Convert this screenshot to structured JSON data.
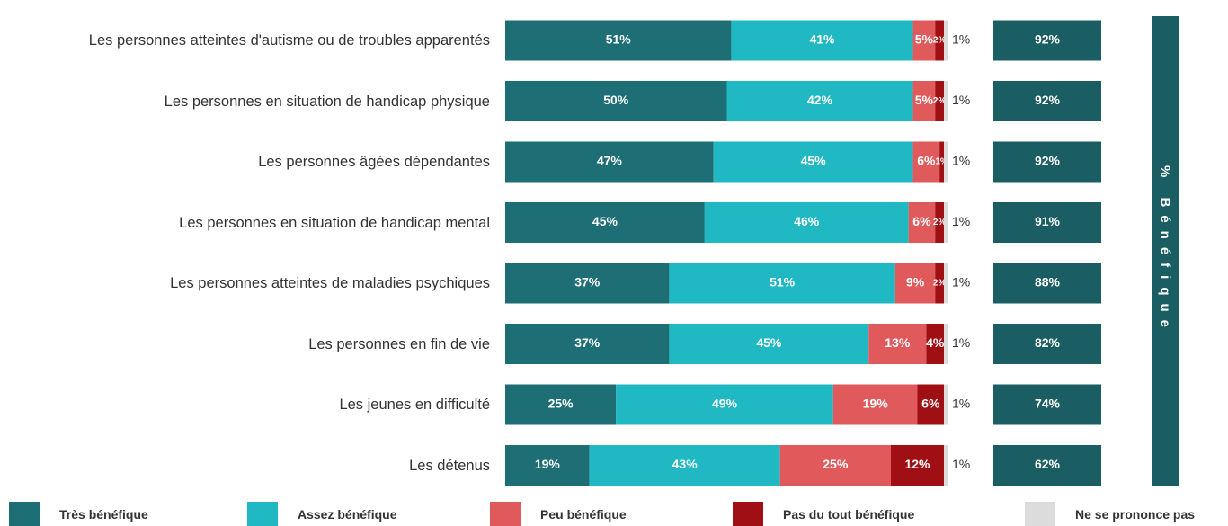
{
  "chart_data": {
    "type": "stacked-bar",
    "categories": [
      "Les personnes atteintes d'autisme ou de troubles apparentés",
      "Les personnes en situation de handicap physique",
      "Les personnes âgées dépendantes",
      "Les personnes en situation de handicap mental",
      "Les personnes atteintes de maladies psychiques",
      "Les personnes en fin de vie",
      "Les jeunes en difficulté",
      "Les détenus"
    ],
    "series": [
      {
        "name": "Très bénéfique",
        "color": "#1d6e75",
        "values": [
          51,
          50,
          47,
          45,
          37,
          37,
          25,
          19
        ],
        "value_labels": [
          "51%",
          "50%",
          "47%",
          "45%",
          "37%",
          "37%",
          "25%",
          "19%"
        ]
      },
      {
        "name": "Assez bénéfique",
        "color": "#1fb8c3",
        "values": [
          41,
          42,
          45,
          46,
          51,
          45,
          49,
          43
        ],
        "value_labels": [
          "41%",
          "42%",
          "45%",
          "46%",
          "51%",
          "45%",
          "49%",
          "43%"
        ]
      },
      {
        "name": "Peu bénéfique",
        "color": "#e05a5c",
        "values": [
          5,
          5,
          6,
          6,
          9,
          13,
          19,
          25
        ],
        "value_labels": [
          "5%",
          "5%",
          "6%",
          "6%",
          "9%",
          "13%",
          "19%",
          "25%"
        ]
      },
      {
        "name": "Pas du tout bénéfique",
        "color": "#a00f14",
        "values": [
          2,
          2,
          1,
          2,
          2,
          4,
          6,
          12
        ],
        "value_labels": [
          "2%",
          "2%",
          "1%",
          "2%",
          "2%",
          "4%",
          "6%",
          "12%"
        ]
      },
      {
        "name": "Ne se prononce pas",
        "color": "#dcdcdc",
        "values": [
          1,
          1,
          1,
          1,
          1,
          1,
          1,
          1
        ],
        "value_labels": [
          "1%",
          "1%",
          "1%",
          "1%",
          "1%",
          "1%",
          "1%",
          "1%"
        ]
      }
    ],
    "benefique": {
      "label": "% Bénéfique",
      "color": "#1a5e63",
      "values": [
        92,
        92,
        92,
        91,
        88,
        82,
        74,
        62
      ],
      "value_labels": [
        "92%",
        "92%",
        "92%",
        "91%",
        "88%",
        "82%",
        "74%",
        "62%"
      ]
    }
  }
}
